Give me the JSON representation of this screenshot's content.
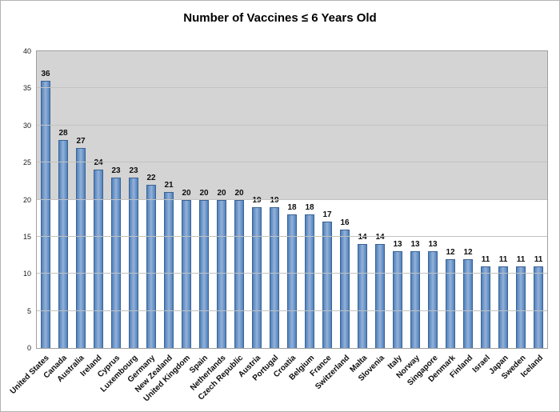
{
  "chart_data": {
    "type": "bar",
    "title": "Number of Vaccines ≤ 6 Years Old",
    "categories": [
      "United States",
      "Canada",
      "Australia",
      "Ireland",
      "Cyprus",
      "Luxembourg",
      "Germany",
      "New Zealand",
      "United Kingdom",
      "Spain",
      "Netherlands",
      "Czech Republic",
      "Austria",
      "Portugal",
      "Croatia",
      "Belgium",
      "France",
      "Switzerland",
      "Malta",
      "Slovenia",
      "Italy",
      "Norway",
      "Singapore",
      "Denmark",
      "Finland",
      "Israel",
      "Japan",
      "Sweden",
      "Iceland"
    ],
    "values": [
      36,
      28,
      27,
      24,
      23,
      23,
      22,
      21,
      20,
      20,
      20,
      20,
      19,
      19,
      18,
      18,
      17,
      16,
      14,
      14,
      13,
      13,
      13,
      12,
      12,
      11,
      11,
      11,
      11
    ],
    "xlabel": "",
    "ylabel": "",
    "ylim": [
      0,
      40
    ],
    "ytick_step": 5,
    "ytick_labels": [
      "0",
      "5",
      "10",
      "15",
      "20",
      "25",
      "30",
      "35",
      "40"
    ],
    "grid": true,
    "legend": false,
    "data_labels": true,
    "colors": {
      "bar_edge": "#4f81bd",
      "bar_center": "#94b2d8",
      "bar_border": "#3b6395",
      "plot_bg_top": "#d4d4d4",
      "plot_bg_bottom": "#ffffff",
      "gridline": "#c2c2c2"
    }
  }
}
